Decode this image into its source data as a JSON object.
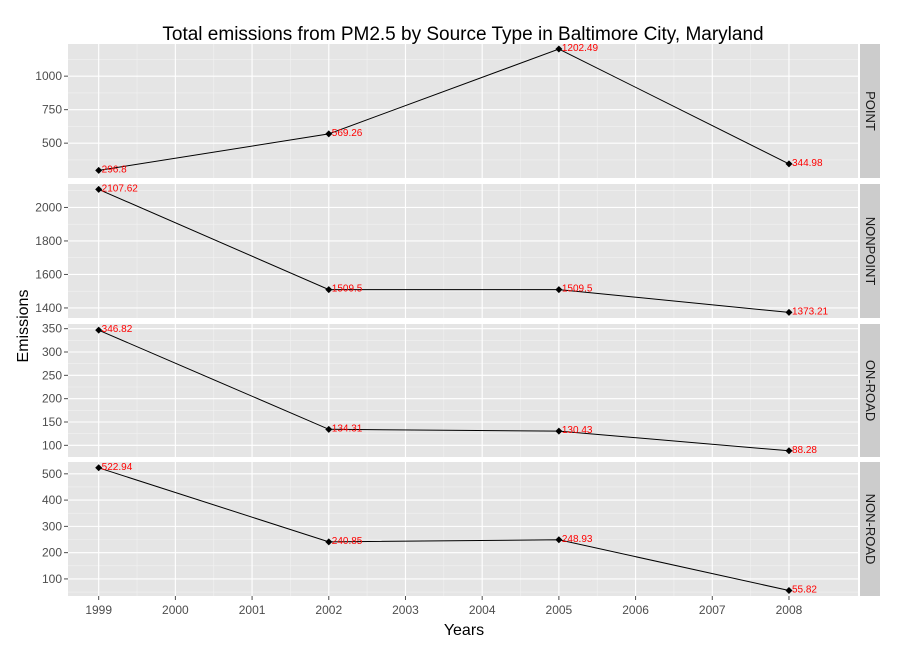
{
  "chart_data": {
    "type": "line",
    "title": "Total emissions from PM2.5 by Source Type in Baltimore City, Maryland",
    "xlabel": "Years",
    "ylabel": "Emissions",
    "x": [
      1999,
      2002,
      2005,
      2008
    ],
    "xticks": [
      "1999",
      "2000",
      "2001",
      "2002",
      "2003",
      "2004",
      "2005",
      "2006",
      "2007",
      "2008"
    ],
    "xlim": [
      1998.6,
      2008.9
    ],
    "grid": true,
    "facets": [
      {
        "name": "POINT",
        "values": [
          296.8,
          569.26,
          1202.49,
          344.98
        ],
        "labels": [
          "296.8",
          "569.26",
          "1202.49",
          "344.98"
        ],
        "yticks": [
          500,
          750,
          1000
        ],
        "ylim": [
          240,
          1240
        ]
      },
      {
        "name": "NONPOINT",
        "values": [
          2107.62,
          1509.5,
          1509.5,
          1373.21
        ],
        "labels": [
          "2107.62",
          "1509.5",
          "1509.5",
          "1373.21"
        ],
        "yticks": [
          1400,
          1600,
          1800,
          2000
        ],
        "ylim": [
          1340,
          2140
        ]
      },
      {
        "name": "ON-ROAD",
        "values": [
          346.82,
          134.31,
          130.43,
          88.28
        ],
        "labels": [
          "346.82",
          "134.31",
          "130.43",
          "88.28"
        ],
        "yticks": [
          100,
          150,
          200,
          250,
          300,
          350
        ],
        "ylim": [
          75,
          360
        ]
      },
      {
        "name": "NON-ROAD",
        "values": [
          522.94,
          240.85,
          248.93,
          55.82
        ],
        "labels": [
          "522.94",
          "240.85",
          "248.93",
          "55.82"
        ],
        "yticks": [
          100,
          200,
          300,
          400,
          500
        ],
        "ylim": [
          35,
          545
        ]
      }
    ]
  }
}
